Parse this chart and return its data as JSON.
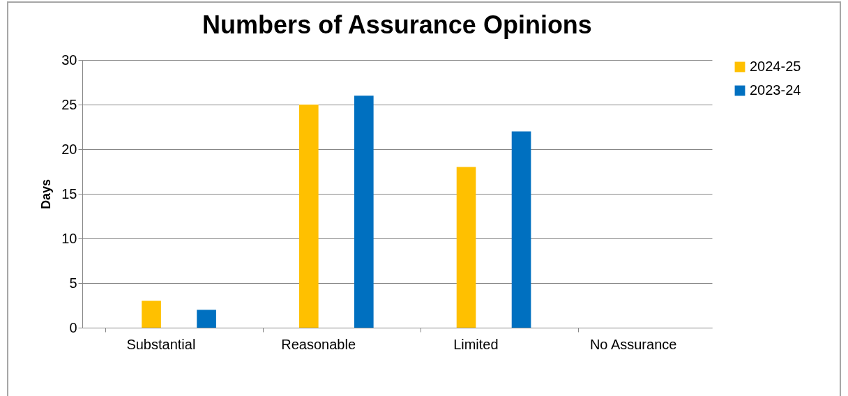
{
  "chart_data": {
    "type": "bar",
    "title": "Numbers of Assurance Opinions",
    "ylabel": "Days",
    "categories": [
      "Substantial",
      "Reasonable",
      "Limited",
      "No Assurance"
    ],
    "series": [
      {
        "name": "2024-25",
        "color": "#ffc000",
        "values": [
          3,
          25,
          18,
          0
        ]
      },
      {
        "name": "2023-24",
        "color": "#0070c0",
        "values": [
          2,
          26,
          22,
          0
        ]
      }
    ],
    "ylim": [
      0,
      30
    ],
    "yticks": [
      0,
      5,
      10,
      15,
      20,
      25,
      30
    ],
    "grid": "y",
    "legend": "right"
  }
}
